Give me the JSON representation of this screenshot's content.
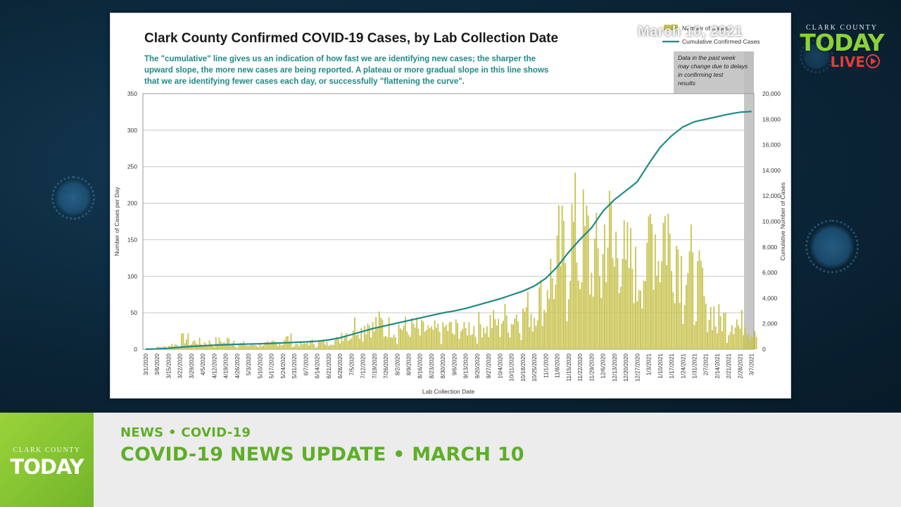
{
  "overlay": {
    "date_stamp": "March 10, 2021",
    "brand": {
      "county": "CLARK COUNTY",
      "today": "TODAY",
      "live": "LIVE"
    }
  },
  "lower_third": {
    "logo_county": "CLARK COUNTY",
    "logo_today": "TODAY",
    "kicker": "NEWS • COVID-19",
    "headline": "COVID-19 NEWS UPDATE • MARCH 10"
  },
  "colors": {
    "bars": "#c9c453",
    "cumulative_line": "#1f8a86",
    "accent_green": "#5fae28",
    "shaded": "#bdbdbd"
  },
  "chart_data": {
    "type": "bar",
    "title": "Clark County Confirmed COVID-19 Cases, by Lab Collection Date",
    "subtitle_lines": [
      "The \"cumulative\" line gives  us an indication of how fast we are identifying new cases; the sharper the",
      "upward slope, the more new cases are being reported. A plateau or more gradual slope in this line shows",
      "that we are identifying fewer cases each day, or successfully \"flattening the curve\"."
    ],
    "xlabel": "Lab Collection Date",
    "ylabel": "Number of Cases per Day",
    "y2label": "Cumulative Number of Cases",
    "ylim": [
      0,
      350
    ],
    "y2lim": [
      0,
      20000
    ],
    "y_ticks": [
      0,
      50,
      100,
      150,
      200,
      250,
      300,
      350
    ],
    "y2_ticks": [
      "0",
      "2,000",
      "4,000",
      "6,000",
      "8,000",
      "10,000",
      "12,000",
      "14,000",
      "16,000",
      "18,000",
      "20,000"
    ],
    "x_ticks": [
      "3/1/2020",
      "3/8/2020",
      "3/15/2020",
      "3/22/2020",
      "3/29/2020",
      "4/5/2020",
      "4/12/2020",
      "4/19/2020",
      "4/26/2020",
      "5/3/2020",
      "5/10/2020",
      "5/17/2020",
      "5/24/2020",
      "5/31/2020",
      "6/7/2020",
      "6/14/2020",
      "6/21/2020",
      "6/28/2020",
      "7/5/2020",
      "7/12/2020",
      "7/19/2020",
      "7/26/2020",
      "8/2/2020",
      "8/9/2020",
      "8/16/2020",
      "8/23/2020",
      "8/30/2020",
      "9/6/2020",
      "9/13/2020",
      "9/20/2020",
      "9/27/2020",
      "10/4/2020",
      "10/11/2020",
      "10/18/2020",
      "10/25/2020",
      "11/1/2020",
      "11/8/2020",
      "11/15/2020",
      "11/22/2020",
      "11/29/2020",
      "12/6/2020",
      "12/13/2020",
      "12/20/2020",
      "12/27/2020",
      "1/3/2021",
      "1/10/2021",
      "1/17/2021",
      "1/24/2021",
      "1/31/2021",
      "2/7/2021",
      "2/14/2021",
      "2/21/2021",
      "2/28/2021",
      "3/7/2021"
    ],
    "weekly_avg_cases_per_day": [
      1,
      3,
      6,
      14,
      10,
      9,
      11,
      12,
      7,
      6,
      7,
      9,
      14,
      7,
      9,
      9,
      12,
      22,
      32,
      35,
      34,
      30,
      30,
      29,
      26,
      25,
      28,
      28,
      30,
      33,
      36,
      42,
      46,
      53,
      66,
      96,
      128,
      155,
      145,
      120,
      155,
      140,
      115,
      110,
      160,
      165,
      140,
      110,
      85,
      50,
      40,
      40,
      35,
      30
    ],
    "cumulative": {
      "name": "Cumulative Confirmed Cases",
      "values": [
        5,
        30,
        80,
        160,
        220,
        270,
        320,
        360,
        390,
        410,
        430,
        460,
        500,
        540,
        580,
        630,
        730,
        900,
        1150,
        1400,
        1650,
        1850,
        2050,
        2250,
        2450,
        2650,
        2850,
        3000,
        3200,
        3450,
        3700,
        3950,
        4250,
        4550,
        4950,
        5550,
        6450,
        7600,
        8600,
        9500,
        10800,
        11700,
        12400,
        13100,
        14500,
        15800,
        16700,
        17400,
        17800,
        18000,
        18200,
        18400,
        18550,
        18600
      ]
    },
    "legend": {
      "placement": "top-right",
      "entries": [
        "Number of Cases",
        "Cumulative Confirmed Cases"
      ]
    },
    "note": "Data in the past week may change due to delays in confirming test results",
    "grid": true
  }
}
